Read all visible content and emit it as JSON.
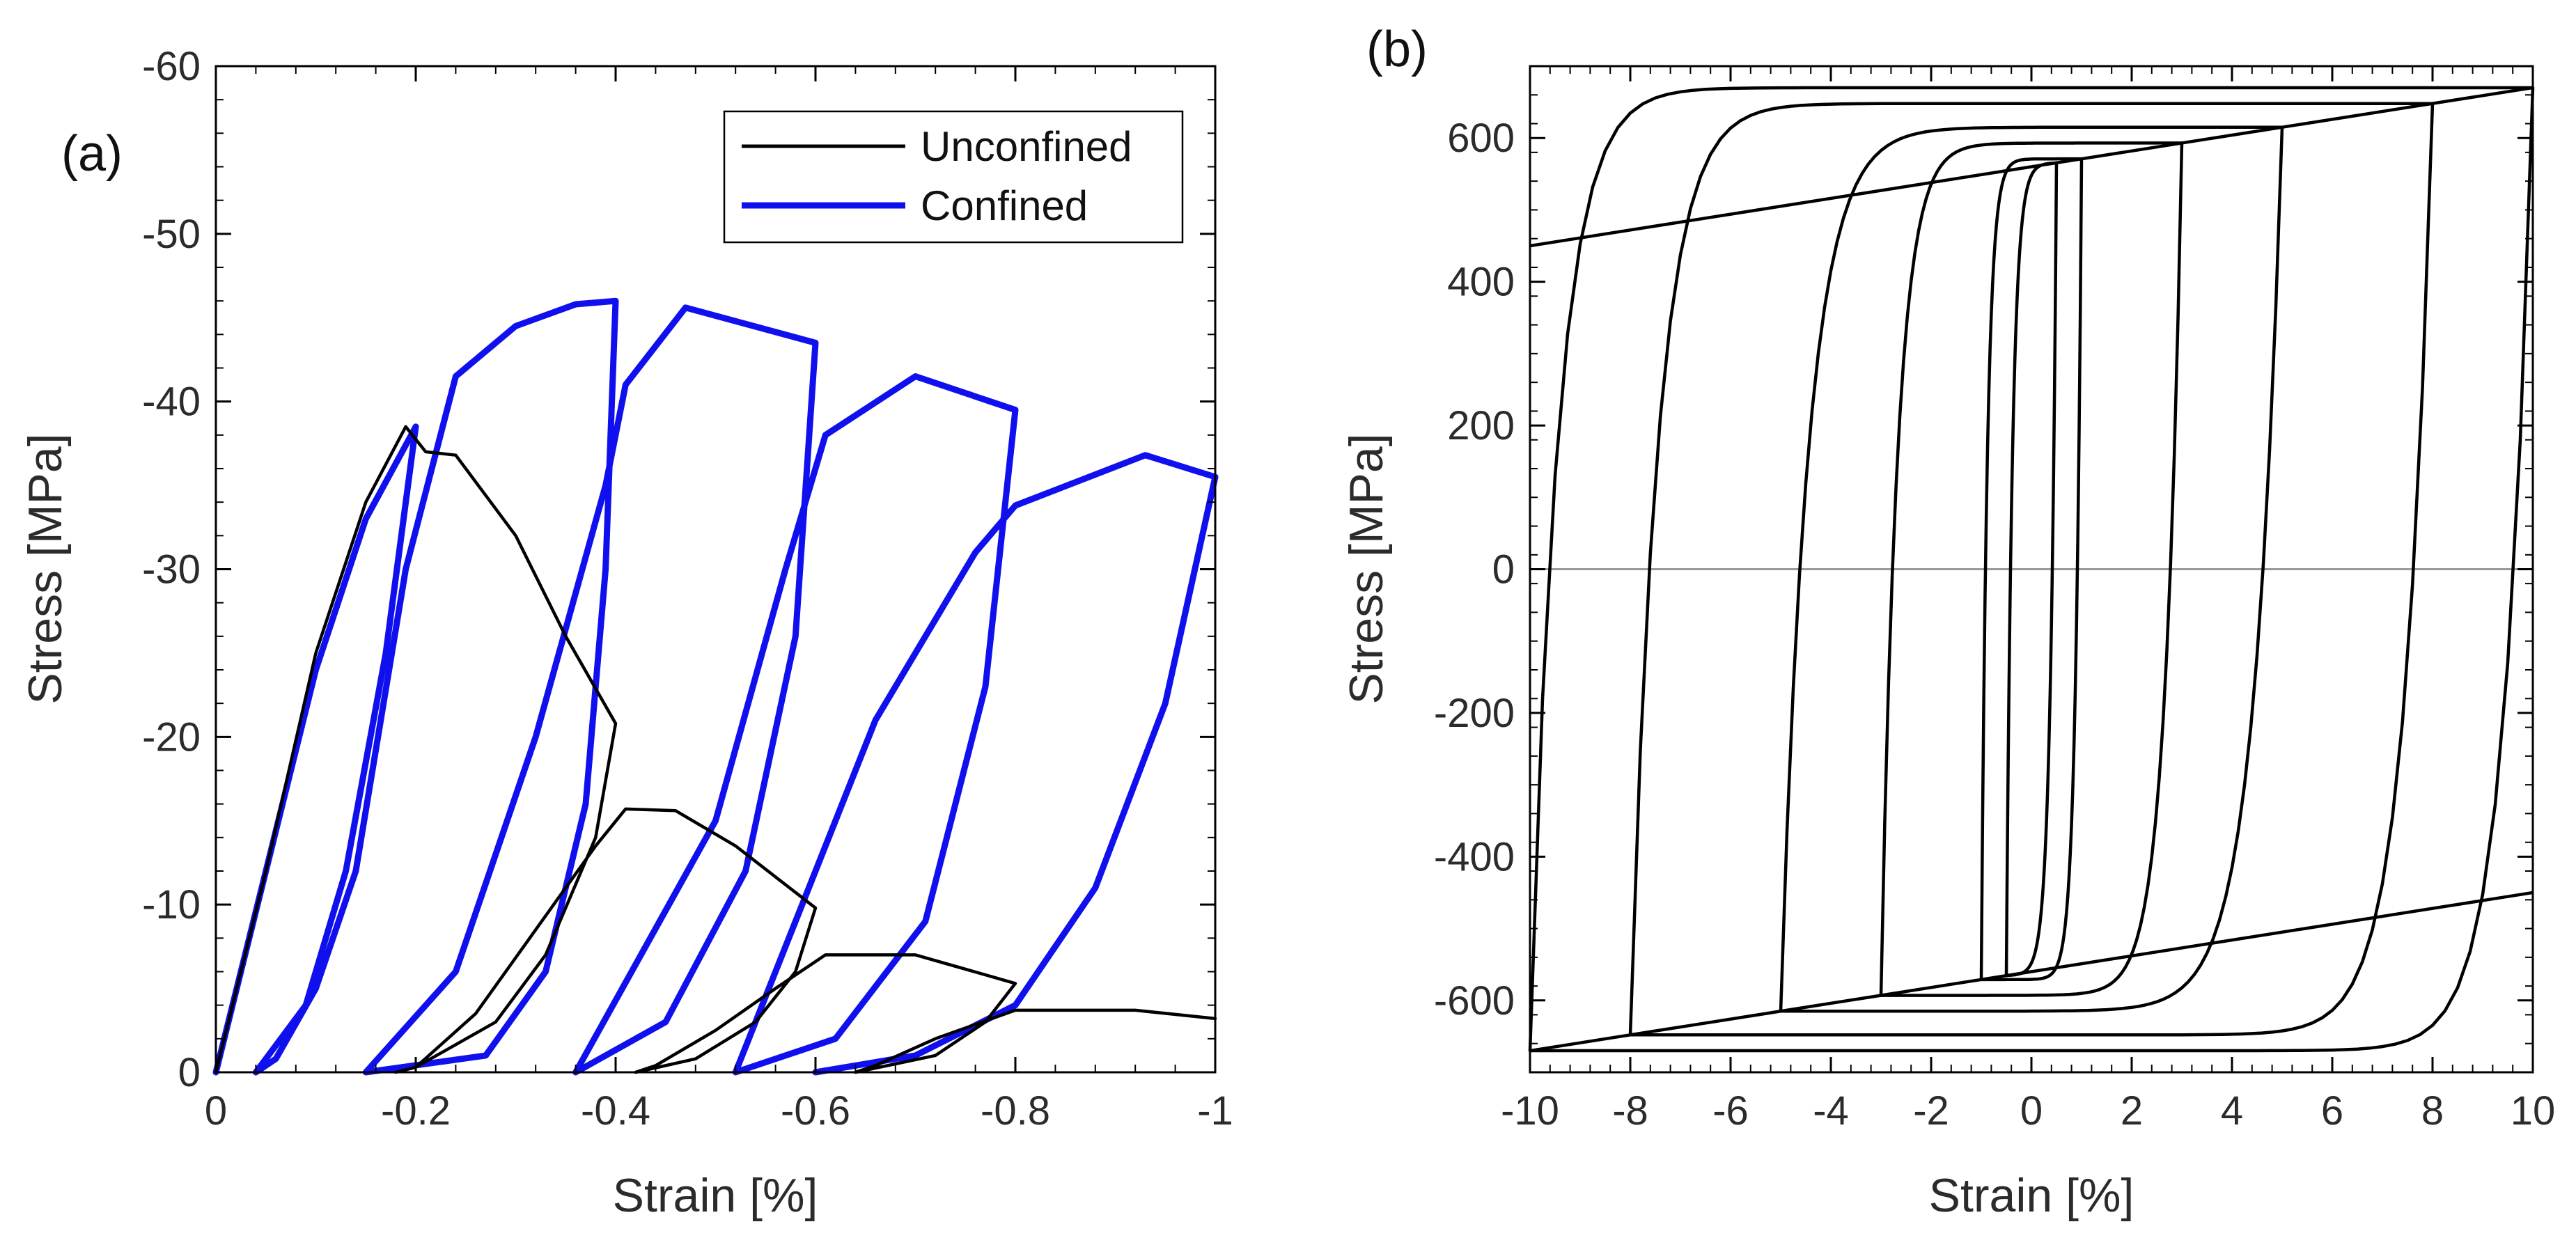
{
  "chart_data": [
    {
      "type": "line",
      "panel": "(a)",
      "xlabel": "Strain [%]",
      "ylabel": "Stress [MPa]",
      "xlim": [
        0,
        -1
      ],
      "ylim": [
        0,
        -60
      ],
      "xticks": [
        0,
        -0.2,
        -0.4,
        -0.6,
        -0.8,
        -1
      ],
      "xtick_labels": [
        "0",
        "-0.2",
        "-0.4",
        "-0.6",
        "-0.8",
        "-1"
      ],
      "yticks": [
        0,
        -10,
        -20,
        -30,
        -40,
        -50,
        -60
      ],
      "ytick_labels": [
        "0",
        "-10",
        "-20",
        "-30",
        "-40",
        "-50",
        "-60"
      ],
      "legend": {
        "position": "top-right",
        "entries": [
          "Unconfined",
          "Confined"
        ]
      },
      "series": [
        {
          "name": "Unconfined",
          "color": "#000000",
          "points": [
            [
              0,
              0
            ],
            [
              -0.05,
              -12
            ],
            [
              -0.1,
              -25
            ],
            [
              -0.15,
              -34
            ],
            [
              -0.19,
              -38.5
            ],
            [
              -0.21,
              -37
            ],
            [
              -0.24,
              -36.8
            ],
            [
              -0.3,
              -32
            ],
            [
              -0.35,
              -26
            ],
            [
              -0.4,
              -20.8
            ],
            [
              -0.38,
              -14
            ],
            [
              -0.33,
              -7
            ],
            [
              -0.28,
              -3
            ],
            [
              -0.2,
              -0.3
            ],
            [
              -0.18,
              0
            ],
            [
              -0.2,
              -0.3
            ],
            [
              -0.26,
              -3.5
            ],
            [
              -0.32,
              -8.5
            ],
            [
              -0.38,
              -13.5
            ],
            [
              -0.41,
              -15.7
            ],
            [
              -0.46,
              -15.6
            ],
            [
              -0.52,
              -13.5
            ],
            [
              -0.6,
              -9.8
            ],
            [
              -0.58,
              -6
            ],
            [
              -0.54,
              -3
            ],
            [
              -0.48,
              -0.8
            ],
            [
              -0.42,
              0
            ],
            [
              -0.44,
              -0.4
            ],
            [
              -0.5,
              -2.5
            ],
            [
              -0.56,
              -5
            ],
            [
              -0.61,
              -7
            ],
            [
              -0.7,
              -7
            ],
            [
              -0.8,
              -5.3
            ],
            [
              -0.77,
              -3
            ],
            [
              -0.72,
              -1
            ],
            [
              -0.64,
              0
            ],
            [
              -0.66,
              -0.4
            ],
            [
              -0.72,
              -2
            ],
            [
              -0.8,
              -3.7
            ],
            [
              -0.92,
              -3.7
            ],
            [
              -1,
              -3.2
            ]
          ]
        },
        {
          "name": "Confined",
          "color": "#1010ee",
          "points": [
            [
              0,
              0
            ],
            [
              -0.05,
              -12
            ],
            [
              -0.1,
              -24
            ],
            [
              -0.15,
              -33
            ],
            [
              -0.2,
              -38.5
            ],
            [
              -0.17,
              -25
            ],
            [
              -0.13,
              -12
            ],
            [
              -0.09,
              -4
            ],
            [
              -0.04,
              0
            ],
            [
              -0.06,
              -0.8
            ],
            [
              -0.1,
              -5
            ],
            [
              -0.14,
              -12
            ],
            [
              -0.19,
              -30
            ],
            [
              -0.24,
              -41.5
            ],
            [
              -0.3,
              -44.5
            ],
            [
              -0.36,
              -45.8
            ],
            [
              -0.4,
              -46
            ],
            [
              -0.39,
              -30
            ],
            [
              -0.37,
              -16
            ],
            [
              -0.33,
              -6
            ],
            [
              -0.27,
              -1
            ],
            [
              -0.15,
              0
            ],
            [
              -0.24,
              -6
            ],
            [
              -0.32,
              -20
            ],
            [
              -0.39,
              -35
            ],
            [
              -0.41,
              -41
            ],
            [
              -0.47,
              -45.6
            ],
            [
              -0.6,
              -43.5
            ],
            [
              -0.58,
              -26
            ],
            [
              -0.53,
              -12
            ],
            [
              -0.45,
              -3
            ],
            [
              -0.36,
              0
            ],
            [
              -0.5,
              -15
            ],
            [
              -0.57,
              -30
            ],
            [
              -0.61,
              -38
            ],
            [
              -0.7,
              -41.5
            ],
            [
              -0.8,
              -39.5
            ],
            [
              -0.77,
              -23
            ],
            [
              -0.71,
              -9
            ],
            [
              -0.62,
              -2
            ],
            [
              -0.52,
              0
            ],
            [
              -0.66,
              -21
            ],
            [
              -0.76,
              -31
            ],
            [
              -0.8,
              -33.8
            ],
            [
              -0.93,
              -36.8
            ],
            [
              -1,
              -35.5
            ],
            [
              -0.95,
              -22
            ],
            [
              -0.88,
              -11
            ],
            [
              -0.8,
              -4
            ],
            [
              -0.7,
              -1
            ],
            [
              -0.6,
              0
            ]
          ]
        }
      ]
    },
    {
      "type": "line",
      "panel": "(b)",
      "xlabel": "Strain [%]",
      "ylabel": "Stress [MPa]",
      "xlim": [
        -10,
        10
      ],
      "ylim": [
        -700,
        700
      ],
      "xticks": [
        -10,
        -8,
        -6,
        -4,
        -2,
        0,
        2,
        4,
        6,
        8,
        10
      ],
      "xtick_labels": [
        "-10",
        "-8",
        "-6",
        "-4",
        "-2",
        "0",
        "2",
        "4",
        "6",
        "8",
        "10"
      ],
      "yticks": [
        -600,
        -400,
        -200,
        0,
        200,
        400,
        600
      ],
      "ytick_labels": [
        "-600",
        "-400",
        "-200",
        "0",
        "200",
        "400",
        "600"
      ],
      "zero_line": true,
      "series": [
        {
          "name": "Hysteresis loops",
          "color": "#000000",
          "amplitudes": [
            0.5,
            1,
            3,
            5,
            8,
            10
          ],
          "saturation_stress": 560,
          "hardening": 11
        }
      ]
    }
  ]
}
